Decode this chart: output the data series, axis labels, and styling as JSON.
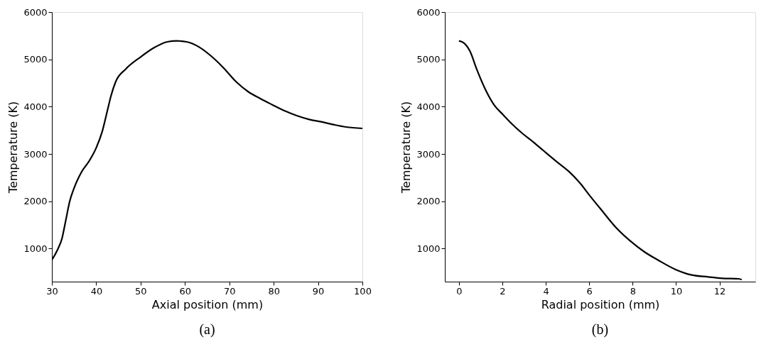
{
  "chart_data": [
    {
      "type": "line",
      "xlabel": "Axial position (mm)",
      "ylabel": "Temperature (K)",
      "annotations": [
        "(a)"
      ],
      "xlim": [
        30,
        100
      ],
      "xticks": [
        30,
        40,
        50,
        60,
        70,
        80,
        90,
        100
      ],
      "ylim": [
        300,
        6000
      ],
      "yticks": [
        1000,
        2000,
        3000,
        4000,
        5000,
        6000
      ],
      "grid": false,
      "marker": "none",
      "line_style": "solid",
      "series": [
        {
          "color": "#000000",
          "x": [
            30,
            31.2,
            32.3,
            33.1,
            34,
            35.1,
            36.7,
            38.4,
            40,
            41.4,
            42.5,
            43.3,
            44.4,
            46.6,
            50,
            53.3,
            56,
            58.2,
            60.4,
            63.2,
            65.9,
            68.7,
            71.5,
            74.2,
            77,
            79.7,
            82.5,
            85.2,
            88,
            90.7,
            93.5,
            96.3,
            100
          ],
          "values": [
            760,
            960,
            1220,
            1580,
            1990,
            2300,
            2620,
            2850,
            3130,
            3490,
            3910,
            4220,
            4530,
            4790,
            5050,
            5260,
            5370,
            5390,
            5370,
            5260,
            5070,
            4820,
            4530,
            4320,
            4170,
            4040,
            3910,
            3810,
            3730,
            3680,
            3620,
            3570,
            3540
          ]
        }
      ]
    },
    {
      "type": "line",
      "xlabel": "Radial position (mm)",
      "ylabel": "Temperature (K)",
      "annotations": [
        "(b)"
      ],
      "xlim": [
        -0.65,
        13.65
      ],
      "xticks": [
        0,
        2,
        4,
        6,
        8,
        10,
        12
      ],
      "ylim": [
        300,
        6000
      ],
      "yticks": [
        1000,
        2000,
        3000,
        4000,
        5000,
        6000
      ],
      "grid": false,
      "marker": "none",
      "line_style": "solid",
      "series": [
        {
          "color": "#000000",
          "x": [
            0,
            0.22,
            0.51,
            0.82,
            1.2,
            1.63,
            2.01,
            2.45,
            2.88,
            3.43,
            3.97,
            4.52,
            5.06,
            5.6,
            6.04,
            6.59,
            7.24,
            7.89,
            8.54,
            9.19,
            9.96,
            10.72,
            11.48,
            12.13,
            12.89,
            13.02
          ],
          "values": [
            5390,
            5350,
            5170,
            4790,
            4380,
            4030,
            3840,
            3630,
            3450,
            3250,
            3040,
            2830,
            2630,
            2370,
            2110,
            1800,
            1440,
            1160,
            930,
            750,
            560,
            440,
            400,
            370,
            360,
            340
          ]
        }
      ]
    }
  ]
}
